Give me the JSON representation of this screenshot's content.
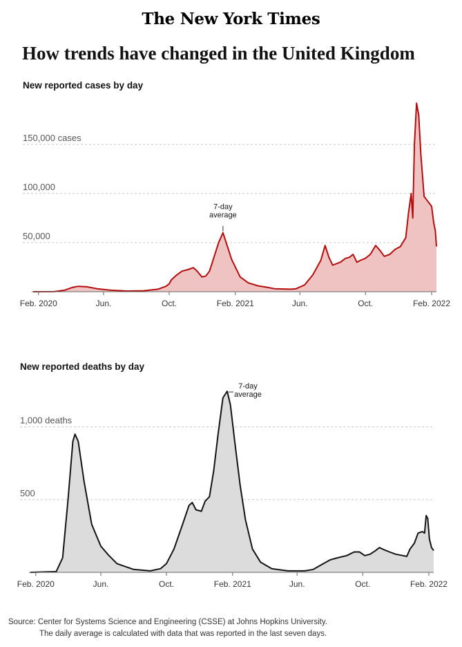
{
  "masthead": "The New York Times",
  "title": "How trends have changed in the United Kingdom",
  "charts": [
    {
      "type": "area",
      "title": "New reported cases by day",
      "fill": "#f0c3c3",
      "stroke": "#b30c0c",
      "grid": "dashed horizontal",
      "ylim": [
        0,
        190000
      ],
      "y_ticks": [
        {
          "value": 50000,
          "label": "50,000"
        },
        {
          "value": 100000,
          "label": "100,000"
        },
        {
          "value": 150000,
          "label": "150,000 cases"
        }
      ],
      "x_ticks": [
        {
          "date": "2020-02-01",
          "label": "Feb. 2020"
        },
        {
          "date": "2020-06-01",
          "label": "Jun."
        },
        {
          "date": "2020-10-01",
          "label": "Oct."
        },
        {
          "date": "2021-02-01",
          "label": "Feb. 2021"
        },
        {
          "date": "2021-06-01",
          "label": "Jun."
        },
        {
          "date": "2021-10-01",
          "label": "Oct."
        },
        {
          "date": "2022-02-01",
          "label": "Feb. 2022"
        }
      ],
      "annotation": {
        "lines": [
          "7-day",
          "average"
        ],
        "date": "2021-01-09",
        "value": 60000
      },
      "series": [
        {
          "x": "2020-01-22",
          "y": 0
        },
        {
          "x": "2020-03-01",
          "y": 50
        },
        {
          "x": "2020-03-20",
          "y": 1500
        },
        {
          "x": "2020-04-05",
          "y": 4500
        },
        {
          "x": "2020-04-15",
          "y": 5500
        },
        {
          "x": "2020-05-01",
          "y": 5000
        },
        {
          "x": "2020-05-20",
          "y": 3000
        },
        {
          "x": "2020-06-15",
          "y": 1500
        },
        {
          "x": "2020-07-15",
          "y": 700
        },
        {
          "x": "2020-08-15",
          "y": 1000
        },
        {
          "x": "2020-09-10",
          "y": 2500
        },
        {
          "x": "2020-09-25",
          "y": 5500
        },
        {
          "x": "2020-10-01",
          "y": 8000
        },
        {
          "x": "2020-10-05",
          "y": 12000
        },
        {
          "x": "2020-10-15",
          "y": 17000
        },
        {
          "x": "2020-10-25",
          "y": 21000
        },
        {
          "x": "2020-11-05",
          "y": 22500
        },
        {
          "x": "2020-11-15",
          "y": 24500
        },
        {
          "x": "2020-11-22",
          "y": 21000
        },
        {
          "x": "2020-12-01",
          "y": 15000
        },
        {
          "x": "2020-12-08",
          "y": 16000
        },
        {
          "x": "2020-12-15",
          "y": 21000
        },
        {
          "x": "2020-12-22",
          "y": 33000
        },
        {
          "x": "2021-01-01",
          "y": 50000
        },
        {
          "x": "2021-01-09",
          "y": 60000
        },
        {
          "x": "2021-01-15",
          "y": 50000
        },
        {
          "x": "2021-01-25",
          "y": 33000
        },
        {
          "x": "2021-02-10",
          "y": 15000
        },
        {
          "x": "2021-02-25",
          "y": 9000
        },
        {
          "x": "2021-03-15",
          "y": 6000
        },
        {
          "x": "2021-04-01",
          "y": 4500
        },
        {
          "x": "2021-04-15",
          "y": 3000
        },
        {
          "x": "2021-05-15",
          "y": 2500
        },
        {
          "x": "2021-05-25",
          "y": 3000
        },
        {
          "x": "2021-06-10",
          "y": 7000
        },
        {
          "x": "2021-06-25",
          "y": 17000
        },
        {
          "x": "2021-07-10",
          "y": 32000
        },
        {
          "x": "2021-07-18",
          "y": 47000
        },
        {
          "x": "2021-07-25",
          "y": 35000
        },
        {
          "x": "2021-08-01",
          "y": 27000
        },
        {
          "x": "2021-08-15",
          "y": 30000
        },
        {
          "x": "2021-08-25",
          "y": 34000
        },
        {
          "x": "2021-09-01",
          "y": 35000
        },
        {
          "x": "2021-09-08",
          "y": 38000
        },
        {
          "x": "2021-09-15",
          "y": 30000
        },
        {
          "x": "2021-09-22",
          "y": 32000
        },
        {
          "x": "2021-10-01",
          "y": 34000
        },
        {
          "x": "2021-10-10",
          "y": 38000
        },
        {
          "x": "2021-10-20",
          "y": 47000
        },
        {
          "x": "2021-10-28",
          "y": 42000
        },
        {
          "x": "2021-11-05",
          "y": 36000
        },
        {
          "x": "2021-11-15",
          "y": 38000
        },
        {
          "x": "2021-11-25",
          "y": 43000
        },
        {
          "x": "2021-12-05",
          "y": 46000
        },
        {
          "x": "2021-12-15",
          "y": 55000
        },
        {
          "x": "2021-12-20",
          "y": 80000
        },
        {
          "x": "2021-12-25",
          "y": 100000
        },
        {
          "x": "2021-12-28",
          "y": 75000
        },
        {
          "x": "2021-12-31",
          "y": 150000
        },
        {
          "x": "2022-01-04",
          "y": 192000
        },
        {
          "x": "2022-01-08",
          "y": 180000
        },
        {
          "x": "2022-01-12",
          "y": 140000
        },
        {
          "x": "2022-01-18",
          "y": 97000
        },
        {
          "x": "2022-01-25",
          "y": 92000
        },
        {
          "x": "2022-02-01",
          "y": 87000
        },
        {
          "x": "2022-02-05",
          "y": 70000
        },
        {
          "x": "2022-02-08",
          "y": 62000
        },
        {
          "x": "2022-02-10",
          "y": 46000
        }
      ]
    },
    {
      "type": "area",
      "title": "New reported deaths by day",
      "fill": "#dcdcdc",
      "stroke": "#121212",
      "grid": "dashed horizontal",
      "ylim": [
        0,
        1250
      ],
      "y_ticks": [
        {
          "value": 500,
          "label": "500"
        },
        {
          "value": 1000,
          "label": "1,000 deaths"
        }
      ],
      "x_ticks": [
        {
          "date": "2020-02-01",
          "label": "Feb. 2020"
        },
        {
          "date": "2020-06-01",
          "label": "Jun."
        },
        {
          "date": "2020-10-01",
          "label": "Oct."
        },
        {
          "date": "2021-02-01",
          "label": "Feb. 2021"
        },
        {
          "date": "2021-06-01",
          "label": "Jun."
        },
        {
          "date": "2021-10-01",
          "label": "Oct."
        },
        {
          "date": "2022-02-01",
          "label": "Feb. 2022"
        }
      ],
      "annotation": {
        "lines": [
          "7-day",
          "average"
        ],
        "date": "2021-01-22",
        "value": 1245
      },
      "series": [
        {
          "x": "2020-01-22",
          "y": 0
        },
        {
          "x": "2020-03-10",
          "y": 5
        },
        {
          "x": "2020-03-22",
          "y": 100
        },
        {
          "x": "2020-04-01",
          "y": 500
        },
        {
          "x": "2020-04-10",
          "y": 900
        },
        {
          "x": "2020-04-14",
          "y": 950
        },
        {
          "x": "2020-04-20",
          "y": 900
        },
        {
          "x": "2020-05-01",
          "y": 620
        },
        {
          "x": "2020-05-15",
          "y": 330
        },
        {
          "x": "2020-06-01",
          "y": 180
        },
        {
          "x": "2020-06-15",
          "y": 120
        },
        {
          "x": "2020-07-01",
          "y": 60
        },
        {
          "x": "2020-08-01",
          "y": 20
        },
        {
          "x": "2020-09-01",
          "y": 10
        },
        {
          "x": "2020-09-20",
          "y": 25
        },
        {
          "x": "2020-10-01",
          "y": 60
        },
        {
          "x": "2020-10-15",
          "y": 160
        },
        {
          "x": "2020-11-01",
          "y": 340
        },
        {
          "x": "2020-11-12",
          "y": 460
        },
        {
          "x": "2020-11-18",
          "y": 480
        },
        {
          "x": "2020-11-25",
          "y": 430
        },
        {
          "x": "2020-12-05",
          "y": 420
        },
        {
          "x": "2020-12-12",
          "y": 490
        },
        {
          "x": "2020-12-20",
          "y": 520
        },
        {
          "x": "2020-12-28",
          "y": 700
        },
        {
          "x": "2021-01-05",
          "y": 950
        },
        {
          "x": "2021-01-14",
          "y": 1200
        },
        {
          "x": "2021-01-22",
          "y": 1245
        },
        {
          "x": "2021-01-28",
          "y": 1150
        },
        {
          "x": "2021-02-05",
          "y": 900
        },
        {
          "x": "2021-02-15",
          "y": 600
        },
        {
          "x": "2021-02-25",
          "y": 360
        },
        {
          "x": "2021-03-10",
          "y": 160
        },
        {
          "x": "2021-03-25",
          "y": 70
        },
        {
          "x": "2021-04-15",
          "y": 25
        },
        {
          "x": "2021-05-15",
          "y": 10
        },
        {
          "x": "2021-06-15",
          "y": 10
        },
        {
          "x": "2021-07-01",
          "y": 20
        },
        {
          "x": "2021-07-15",
          "y": 50
        },
        {
          "x": "2021-08-01",
          "y": 85
        },
        {
          "x": "2021-08-15",
          "y": 100
        },
        {
          "x": "2021-09-01",
          "y": 115
        },
        {
          "x": "2021-09-15",
          "y": 140
        },
        {
          "x": "2021-09-25",
          "y": 140
        },
        {
          "x": "2021-10-05",
          "y": 115
        },
        {
          "x": "2021-10-15",
          "y": 125
        },
        {
          "x": "2021-10-25",
          "y": 150
        },
        {
          "x": "2021-11-01",
          "y": 170
        },
        {
          "x": "2021-11-10",
          "y": 155
        },
        {
          "x": "2021-11-20",
          "y": 140
        },
        {
          "x": "2021-12-01",
          "y": 125
        },
        {
          "x": "2021-12-15",
          "y": 115
        },
        {
          "x": "2021-12-22",
          "y": 110
        },
        {
          "x": "2021-12-28",
          "y": 160
        },
        {
          "x": "2022-01-05",
          "y": 200
        },
        {
          "x": "2022-01-12",
          "y": 270
        },
        {
          "x": "2022-01-20",
          "y": 280
        },
        {
          "x": "2022-01-24",
          "y": 270
        },
        {
          "x": "2022-01-27",
          "y": 390
        },
        {
          "x": "2022-01-30",
          "y": 370
        },
        {
          "x": "2022-02-02",
          "y": 230
        },
        {
          "x": "2022-02-06",
          "y": 170
        },
        {
          "x": "2022-02-10",
          "y": 150
        }
      ]
    }
  ],
  "source": {
    "line1": "Source: Center for Systems Science and Engineering (CSSE) at Johns Hopkins University.",
    "line2": "The daily average is calculated with data that was reported in the last seven days."
  }
}
